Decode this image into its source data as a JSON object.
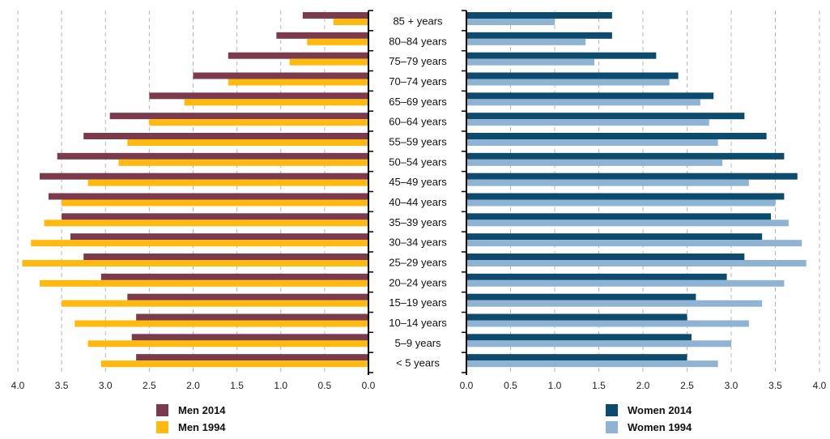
{
  "chart_data": {
    "type": "bar",
    "orientation": "horizontal",
    "subtype": "population-pyramid",
    "categories": [
      "85 + years",
      "80–84 years",
      "75–79 years",
      "70–74 years",
      "65–69 years",
      "60–64 years",
      "55–59 years",
      "50–54 years",
      "45–49 years",
      "40–44 years",
      "35–39 years",
      "30–34 years",
      "25–29 years",
      "20–24 years",
      "15–19 years",
      "10–14 years",
      "5–9 years",
      "< 5 years"
    ],
    "panels": [
      {
        "side": "left",
        "axis_direction": "reversed",
        "xlim": [
          0,
          4.0
        ],
        "ticks": [
          "0.0",
          "0.5",
          "1.0",
          "1.5",
          "2.0",
          "2.5",
          "3.0",
          "3.5",
          "4.0"
        ],
        "grid": true,
        "series": [
          {
            "name": "Men 2014",
            "color": "#7b3b4d",
            "values": [
              0.75,
              1.05,
              1.6,
              2.0,
              2.5,
              2.95,
              3.25,
              3.55,
              3.75,
              3.65,
              3.5,
              3.4,
              3.25,
              3.05,
              2.75,
              2.65,
              2.7,
              2.65
            ]
          },
          {
            "name": "Men 1994",
            "color": "#ffb90f",
            "values": [
              0.4,
              0.7,
              0.9,
              1.6,
              2.1,
              2.5,
              2.75,
              2.85,
              3.2,
              3.5,
              3.7,
              3.85,
              3.95,
              3.75,
              3.5,
              3.35,
              3.2,
              3.05
            ]
          }
        ]
      },
      {
        "side": "right",
        "axis_direction": "normal",
        "xlim": [
          0,
          4.0
        ],
        "ticks": [
          "0.0",
          "0.5",
          "1.0",
          "1.5",
          "2.0",
          "2.5",
          "3.0",
          "3.5",
          "4.0"
        ],
        "grid": true,
        "series": [
          {
            "name": "Women 2014",
            "color": "#0c4a6e",
            "values": [
              1.65,
              1.65,
              2.15,
              2.4,
              2.8,
              3.15,
              3.4,
              3.6,
              3.75,
              3.6,
              3.45,
              3.35,
              3.15,
              2.95,
              2.6,
              2.5,
              2.55,
              2.5
            ]
          },
          {
            "name": "Women 1994",
            "color": "#8fb3d3",
            "values": [
              1.0,
              1.35,
              1.45,
              2.3,
              2.65,
              2.75,
              2.85,
              2.9,
              3.2,
              3.5,
              3.65,
              3.8,
              3.85,
              3.6,
              3.35,
              3.2,
              3.0,
              2.85
            ]
          }
        ]
      }
    ],
    "legend": [
      {
        "label": "Men 2014",
        "color": "#7b3b4d",
        "placement": "bottom-left"
      },
      {
        "label": "Men 1994",
        "color": "#ffb90f",
        "placement": "bottom-left"
      },
      {
        "label": "Women 2014",
        "color": "#0c4a6e",
        "placement": "bottom-right"
      },
      {
        "label": "Women 1994",
        "color": "#8fb3d3",
        "placement": "bottom-right"
      }
    ]
  }
}
